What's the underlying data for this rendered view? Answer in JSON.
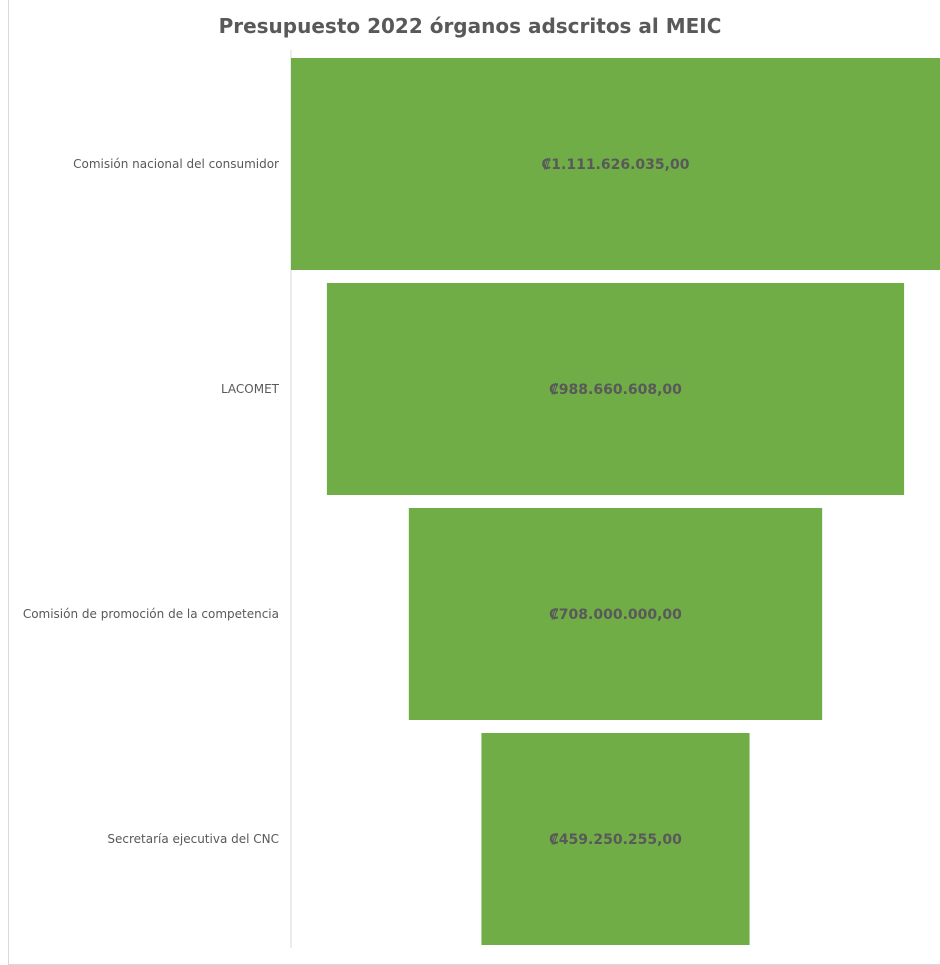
{
  "chart_data": {
    "type": "bar",
    "subtype": "funnel",
    "title": "Presupuesto 2022 órganos adscritos al MEIC",
    "categories": [
      "Comisión nacional del consumidor",
      "LACOMET",
      "Comisión de promoción de la competencia",
      "Secretaría ejecutiva del CNC"
    ],
    "values": [
      1111626035.0,
      988660608.0,
      708000000.0,
      459250255.0
    ],
    "data_labels": [
      "₡1.111.626.035,00",
      "₡988.660.608,00",
      "₡708.000.000,00",
      "₡459.250.255,00"
    ],
    "bar_color": "#70ad47",
    "grid": false,
    "legend": "none"
  }
}
